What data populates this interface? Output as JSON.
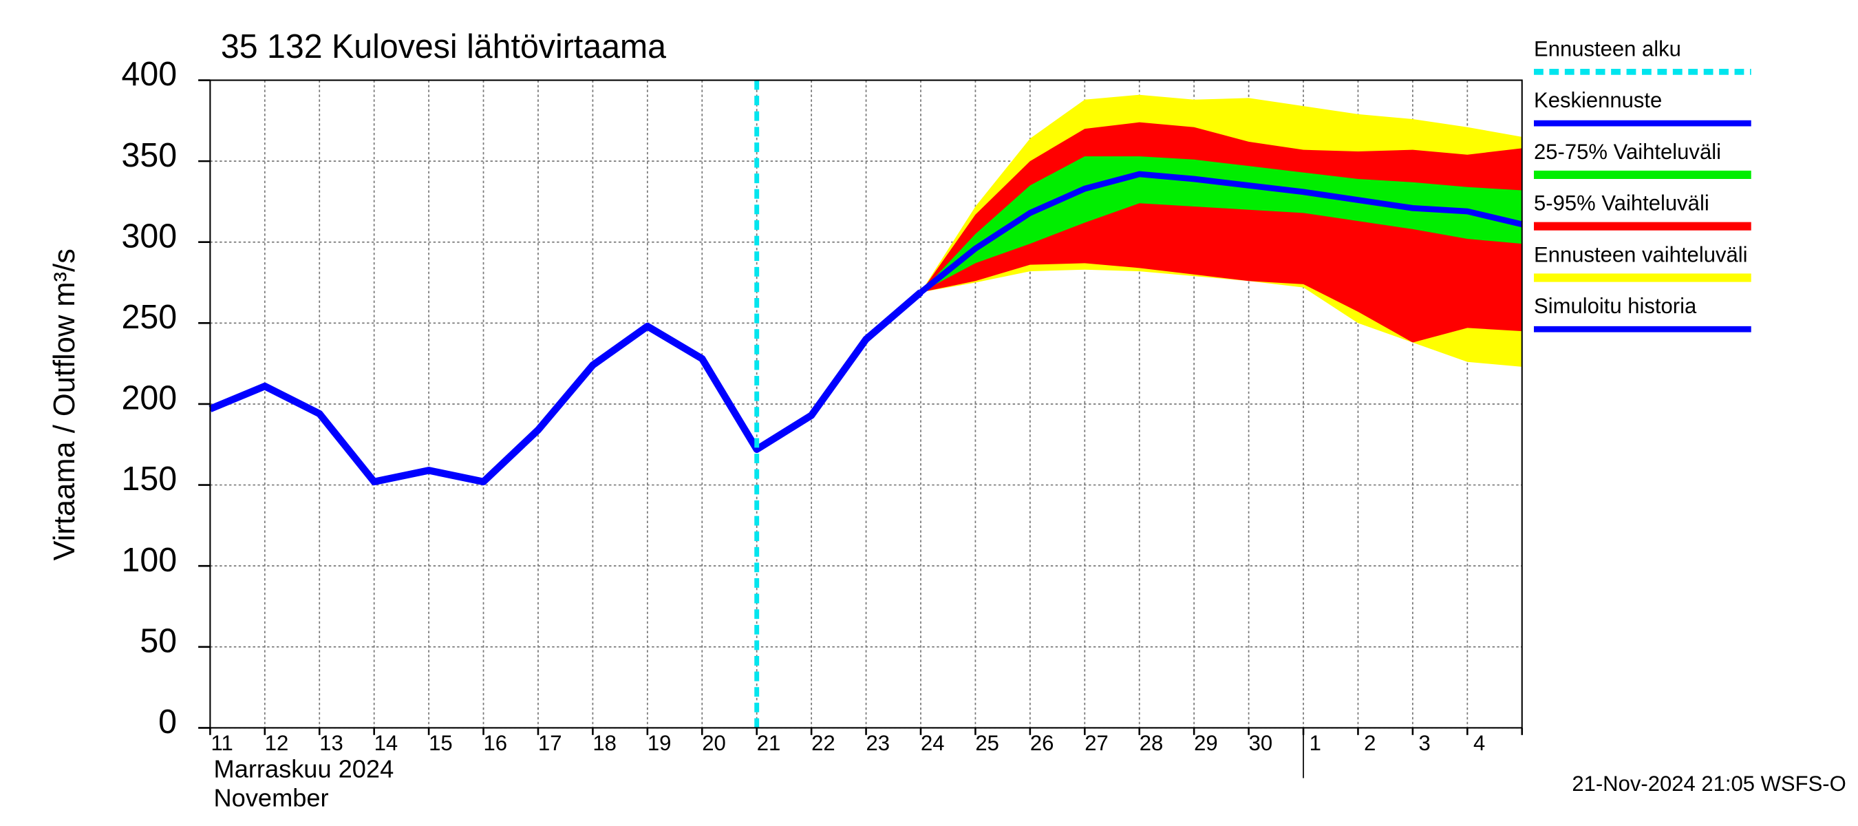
{
  "chart_data": {
    "type": "band-line",
    "title": "35 132 Kulovesi lähtövirtaama",
    "y_label": "Virtaama / Outflow   m³/s",
    "x_label": [
      "Marraskuu 2024",
      "November"
    ],
    "footer": "21-Nov-2024 21:05 WSFS-O",
    "categories": [
      "11",
      "12",
      "13",
      "14",
      "15",
      "16",
      "17",
      "18",
      "19",
      "20",
      "21",
      "22",
      "23",
      "24",
      "25",
      "26",
      "27",
      "28",
      "29",
      "30",
      "1",
      "2",
      "3",
      "4",
      null
    ],
    "ylim": [
      0,
      400
    ],
    "yticks": [
      0,
      50,
      100,
      150,
      200,
      250,
      300,
      350,
      400
    ],
    "grid": true,
    "series": [
      {
        "name": "Ennusteen alku",
        "color": "#00e5ee",
        "category": "21"
      },
      {
        "name": "Keskiennuste",
        "color": "#0000ff",
        "values": [
          null,
          null,
          null,
          null,
          null,
          null,
          null,
          null,
          null,
          null,
          null,
          null,
          null,
          269,
          296,
          318,
          333,
          342,
          339,
          335,
          331,
          326,
          321,
          319,
          311
        ]
      },
      {
        "name": "25-75% Vaihteluväli",
        "color": "#00ee00",
        "upper": [
          null,
          null,
          null,
          null,
          null,
          null,
          null,
          null,
          null,
          null,
          null,
          null,
          null,
          269,
          305,
          335,
          353,
          353,
          351,
          347,
          343,
          339,
          337,
          334,
          332
        ],
        "lower": [
          null,
          null,
          null,
          null,
          null,
          null,
          null,
          null,
          null,
          null,
          null,
          null,
          null,
          269,
          287,
          299,
          312,
          324,
          322,
          320,
          318,
          313,
          308,
          302,
          299
        ]
      },
      {
        "name": "5-95% Vaihteluväli",
        "color": "#ff0000",
        "upper": [
          null,
          null,
          null,
          null,
          null,
          null,
          null,
          null,
          null,
          null,
          null,
          null,
          null,
          269,
          317,
          350,
          370,
          374,
          371,
          362,
          357,
          356,
          357,
          354,
          358
        ],
        "lower": [
          null,
          null,
          null,
          null,
          null,
          null,
          null,
          null,
          null,
          null,
          null,
          null,
          null,
          269,
          276,
          286,
          287,
          284,
          280,
          276,
          274,
          257,
          238,
          247,
          245
        ]
      },
      {
        "name": "Ennusteen vaihteluväli",
        "color": "#ffff00",
        "upper": [
          null,
          null,
          null,
          null,
          null,
          null,
          null,
          null,
          null,
          null,
          null,
          null,
          null,
          269,
          322,
          364,
          388,
          391,
          388,
          389,
          384,
          379,
          376,
          371,
          365
        ],
        "lower": [
          null,
          null,
          null,
          null,
          null,
          null,
          null,
          null,
          null,
          null,
          null,
          null,
          null,
          269,
          275,
          282,
          283,
          282,
          279,
          276,
          272,
          250,
          238,
          226,
          223
        ]
      },
      {
        "name": "Simuloitu historia",
        "color": "#0000ff",
        "values": [
          197,
          211,
          194,
          152,
          159,
          152,
          184,
          224,
          248,
          228,
          172,
          193,
          240,
          269,
          null,
          null,
          null,
          null,
          null,
          null,
          null,
          null,
          null,
          null,
          null
        ]
      }
    ]
  }
}
